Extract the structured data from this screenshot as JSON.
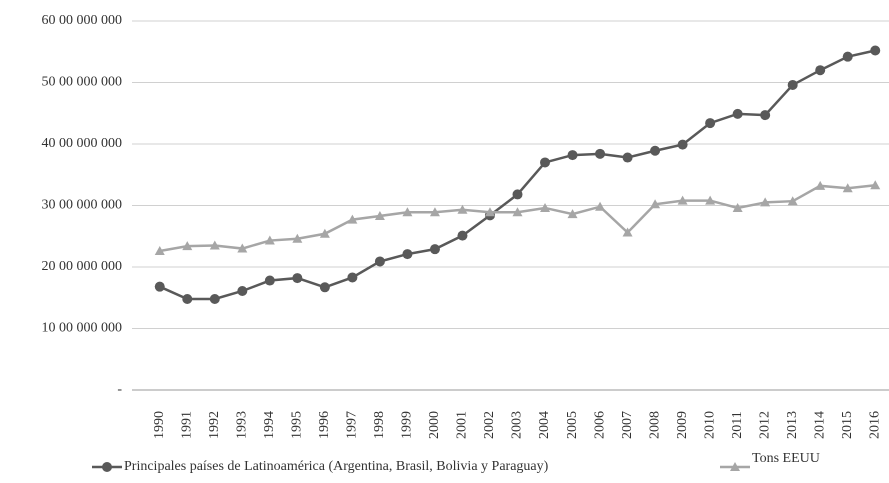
{
  "chart_data": {
    "type": "line",
    "categories": [
      "1990",
      "1991",
      "1992",
      "1993",
      "1994",
      "1995",
      "1996",
      "1997",
      "1998",
      "1999",
      "2000",
      "2001",
      "2002",
      "2003",
      "2004",
      "2005",
      "2006",
      "2007",
      "2008",
      "2009",
      "2010",
      "2011",
      "2012",
      "2013",
      "2014",
      "2015",
      "2016"
    ],
    "series": [
      {
        "name": "Principales países de Latinoamérica (Argentina, Brasil, Bolivia y Paraguay)",
        "color": "#595959",
        "marker": "circle",
        "values": [
          16800000,
          14800000,
          14800000,
          16100000,
          17800000,
          18200000,
          16700000,
          18300000,
          20900000,
          22100000,
          22900000,
          25100000,
          28400000,
          31800000,
          37000000,
          38200000,
          38400000,
          37800000,
          38900000,
          39900000,
          43400000,
          44900000,
          44700000,
          49600000,
          52000000,
          54200000,
          55200000
        ]
      },
      {
        "name": "Tons EEUU",
        "color": "#a6a6a6",
        "marker": "triangle",
        "values": [
          22600000,
          23400000,
          23500000,
          23000000,
          24300000,
          24600000,
          25400000,
          27700000,
          28300000,
          28900000,
          28900000,
          29300000,
          28900000,
          28900000,
          29600000,
          28600000,
          29800000,
          25600000,
          30200000,
          30800000,
          30800000,
          29600000,
          30500000,
          30700000,
          33200000,
          32800000,
          33300000
        ]
      }
    ],
    "ylim": [
      0,
      60000000
    ],
    "yticks": [
      {
        "value": 0,
        "label": "-"
      },
      {
        "value": 10000000,
        "label": "10 00 000 000"
      },
      {
        "value": 20000000,
        "label": "20 00 000 000"
      },
      {
        "value": 30000000,
        "label": "30 00 000 000"
      },
      {
        "value": 40000000,
        "label": "40 00 000 000"
      },
      {
        "value": 50000000,
        "label": "50 00 000 000"
      },
      {
        "value": 60000000,
        "label": "60 00 000 000"
      }
    ],
    "grid": true,
    "legend": "bottom"
  }
}
